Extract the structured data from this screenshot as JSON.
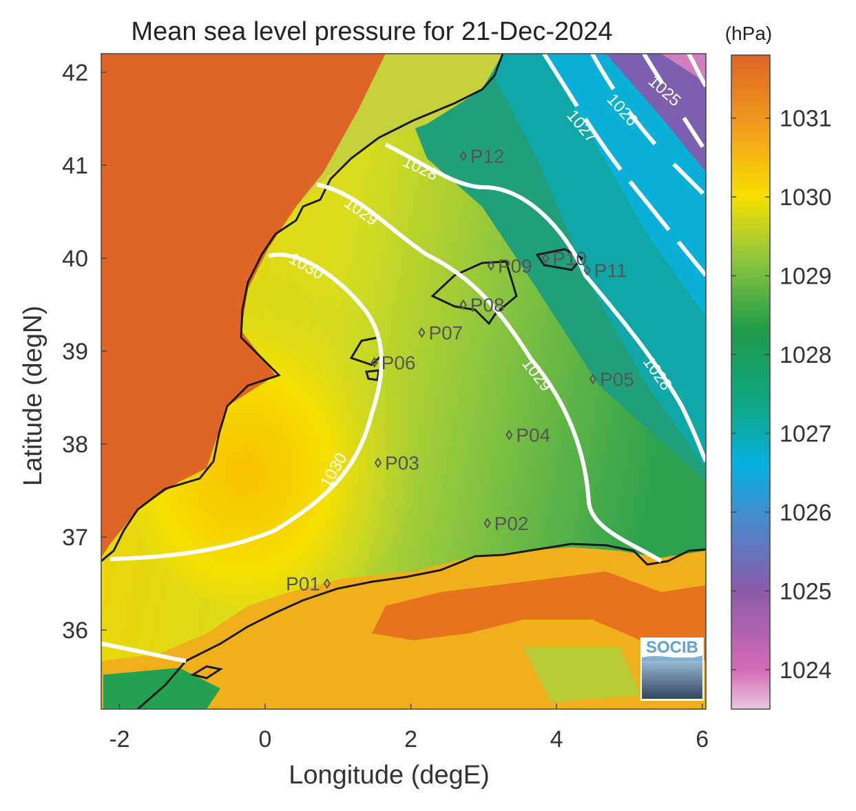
{
  "title": "Mean sea level pressure for 21-Dec-2024",
  "colorbar": {
    "unit": "(hPa)",
    "min": 1023.5,
    "max": 1031.8,
    "ticks": [
      1024,
      1025,
      1026,
      1027,
      1028,
      1029,
      1030,
      1031
    ],
    "colors": {
      "low": "#e9c8e0",
      "c1024": "#d56bb6",
      "c1025": "#8a5aa8",
      "c1026": "#3f8fcf",
      "c1027": "#05b0e0",
      "c1028": "#0ea88a",
      "c1029": "#1e9a47",
      "c1029b": "#8cc63f",
      "c1030": "#f7e000",
      "c1031": "#f3a31a",
      "high": "#de6525"
    }
  },
  "x_axis": {
    "label": "Longitude (degE)",
    "min": -2.25,
    "max": 6.05,
    "ticks": [
      -2,
      0,
      2,
      4,
      6
    ]
  },
  "y_axis": {
    "label": "Latitude (degN)",
    "min": 35.15,
    "max": 42.2,
    "ticks": [
      36,
      37,
      38,
      39,
      40,
      41,
      42
    ]
  },
  "contour_labels": [
    "1025",
    "1026",
    "1027",
    "1028",
    "1029",
    "1030"
  ],
  "points": [
    {
      "name": "P01",
      "lon": 0.85,
      "lat": 36.5
    },
    {
      "name": "P02",
      "lon": 3.05,
      "lat": 37.15
    },
    {
      "name": "P03",
      "lon": 1.55,
      "lat": 37.8
    },
    {
      "name": "P04",
      "lon": 3.35,
      "lat": 38.1
    },
    {
      "name": "P05",
      "lon": 4.5,
      "lat": 38.7
    },
    {
      "name": "P06",
      "lon": 1.5,
      "lat": 38.88
    },
    {
      "name": "P07",
      "lon": 2.15,
      "lat": 39.2
    },
    {
      "name": "P08",
      "lon": 2.72,
      "lat": 39.5
    },
    {
      "name": "P09",
      "lon": 3.1,
      "lat": 39.92
    },
    {
      "name": "P10",
      "lon": 3.85,
      "lat": 40.0
    },
    {
      "name": "P11",
      "lon": 4.42,
      "lat": 39.87
    },
    {
      "name": "P12",
      "lon": 2.72,
      "lat": 41.1
    }
  ],
  "logo": {
    "text": "SOCIB"
  }
}
